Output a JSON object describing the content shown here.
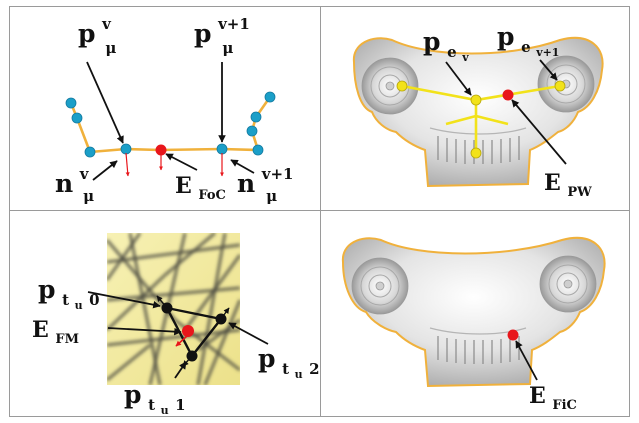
{
  "panels": {
    "top_left": {
      "label_p_v": {
        "base": "p",
        "sup": "v",
        "sub": "μ"
      },
      "label_p_v1": {
        "base": "p",
        "sup": "v+1",
        "sub": "μ"
      },
      "label_n_v": {
        "base": "n",
        "sup": "v",
        "sub": "μ"
      },
      "label_n_v1": {
        "base": "n",
        "sup": "v+1",
        "sub": "μ"
      },
      "label_efoc": {
        "base": "E",
        "sub": "FoC"
      }
    },
    "top_right": {
      "label_p_ev": {
        "base": "p",
        "sub": "e",
        "subsub": "v"
      },
      "label_p_ev1": {
        "base": "p",
        "sub": "e",
        "subsub": "v+1"
      },
      "label_epw": {
        "base": "E",
        "sub": "PW"
      }
    },
    "bottom_left": {
      "label_p_tu0": {
        "base": "p",
        "sub": "t",
        "subsub": "u",
        "tail": "0"
      },
      "label_p_tu1": {
        "base": "p",
        "sub": "t",
        "subsub": "u",
        "tail": "1"
      },
      "label_p_tu2": {
        "base": "p",
        "sub": "t",
        "subsub": "u",
        "tail": "2"
      },
      "label_efm": {
        "base": "E",
        "sub": "FM"
      }
    },
    "bottom_right": {
      "label_efic": {
        "base": "E",
        "sub": "FiC"
      }
    }
  },
  "colors": {
    "curve": "#f0b13c",
    "node": "#1b9fc8",
    "target": "#e8161b",
    "normal": "#e8161b",
    "skeleton": "#f2e21a",
    "outline": "#f0b13c",
    "grid_line": "#9a9a9a",
    "texture": "#f3eca0"
  }
}
